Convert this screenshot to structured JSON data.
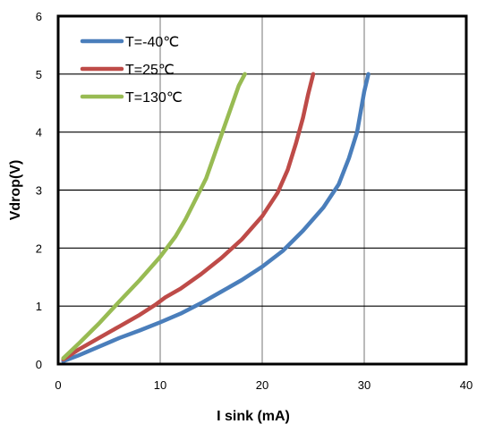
{
  "chart_data": {
    "type": "line",
    "title": "",
    "xlabel": "I sink (mA)",
    "ylabel": "Vdrop(V)",
    "xlim": [
      0,
      40
    ],
    "ylim": [
      0,
      6
    ],
    "x_ticks": [
      "0",
      "10",
      "20",
      "30",
      "40"
    ],
    "y_ticks": [
      "0",
      "1",
      "2",
      "3",
      "4",
      "5",
      "6"
    ],
    "grid": "on",
    "legend_position": "top-left",
    "series": [
      {
        "name": "T=-40℃",
        "color": "#4a7ebb",
        "points": [
          [
            0.5,
            0.05
          ],
          [
            2,
            0.15
          ],
          [
            4,
            0.3
          ],
          [
            6,
            0.45
          ],
          [
            8,
            0.58
          ],
          [
            10,
            0.72
          ],
          [
            12,
            0.87
          ],
          [
            14,
            1.05
          ],
          [
            16,
            1.25
          ],
          [
            18,
            1.45
          ],
          [
            20,
            1.68
          ],
          [
            22,
            1.95
          ],
          [
            24,
            2.3
          ],
          [
            26,
            2.7
          ],
          [
            27.5,
            3.1
          ],
          [
            28.5,
            3.55
          ],
          [
            29.3,
            4.0
          ],
          [
            29.8,
            4.5
          ],
          [
            30.0,
            4.7
          ],
          [
            30.4,
            5.0
          ]
        ]
      },
      {
        "name": "T=25℃",
        "color": "#be4b48",
        "points": [
          [
            0.5,
            0.08
          ],
          [
            2,
            0.25
          ],
          [
            4,
            0.45
          ],
          [
            6,
            0.65
          ],
          [
            8,
            0.85
          ],
          [
            9.5,
            1.02
          ],
          [
            10.5,
            1.15
          ],
          [
            12,
            1.3
          ],
          [
            14,
            1.55
          ],
          [
            16,
            1.83
          ],
          [
            18,
            2.15
          ],
          [
            20,
            2.55
          ],
          [
            21.5,
            2.95
          ],
          [
            22.5,
            3.35
          ],
          [
            23.3,
            3.8
          ],
          [
            24,
            4.25
          ],
          [
            24.5,
            4.65
          ],
          [
            25,
            5.0
          ]
        ]
      },
      {
        "name": "T=130℃",
        "color": "#98bb53",
        "points": [
          [
            0.5,
            0.1
          ],
          [
            2,
            0.35
          ],
          [
            4,
            0.7
          ],
          [
            6,
            1.08
          ],
          [
            8,
            1.45
          ],
          [
            10,
            1.85
          ],
          [
            11.5,
            2.2
          ],
          [
            12.5,
            2.5
          ],
          [
            13.5,
            2.85
          ],
          [
            14.5,
            3.2
          ],
          [
            15.2,
            3.55
          ],
          [
            15.8,
            3.85
          ],
          [
            16.5,
            4.2
          ],
          [
            17.2,
            4.55
          ],
          [
            17.7,
            4.8
          ],
          [
            18.3,
            5.0
          ]
        ]
      }
    ]
  }
}
